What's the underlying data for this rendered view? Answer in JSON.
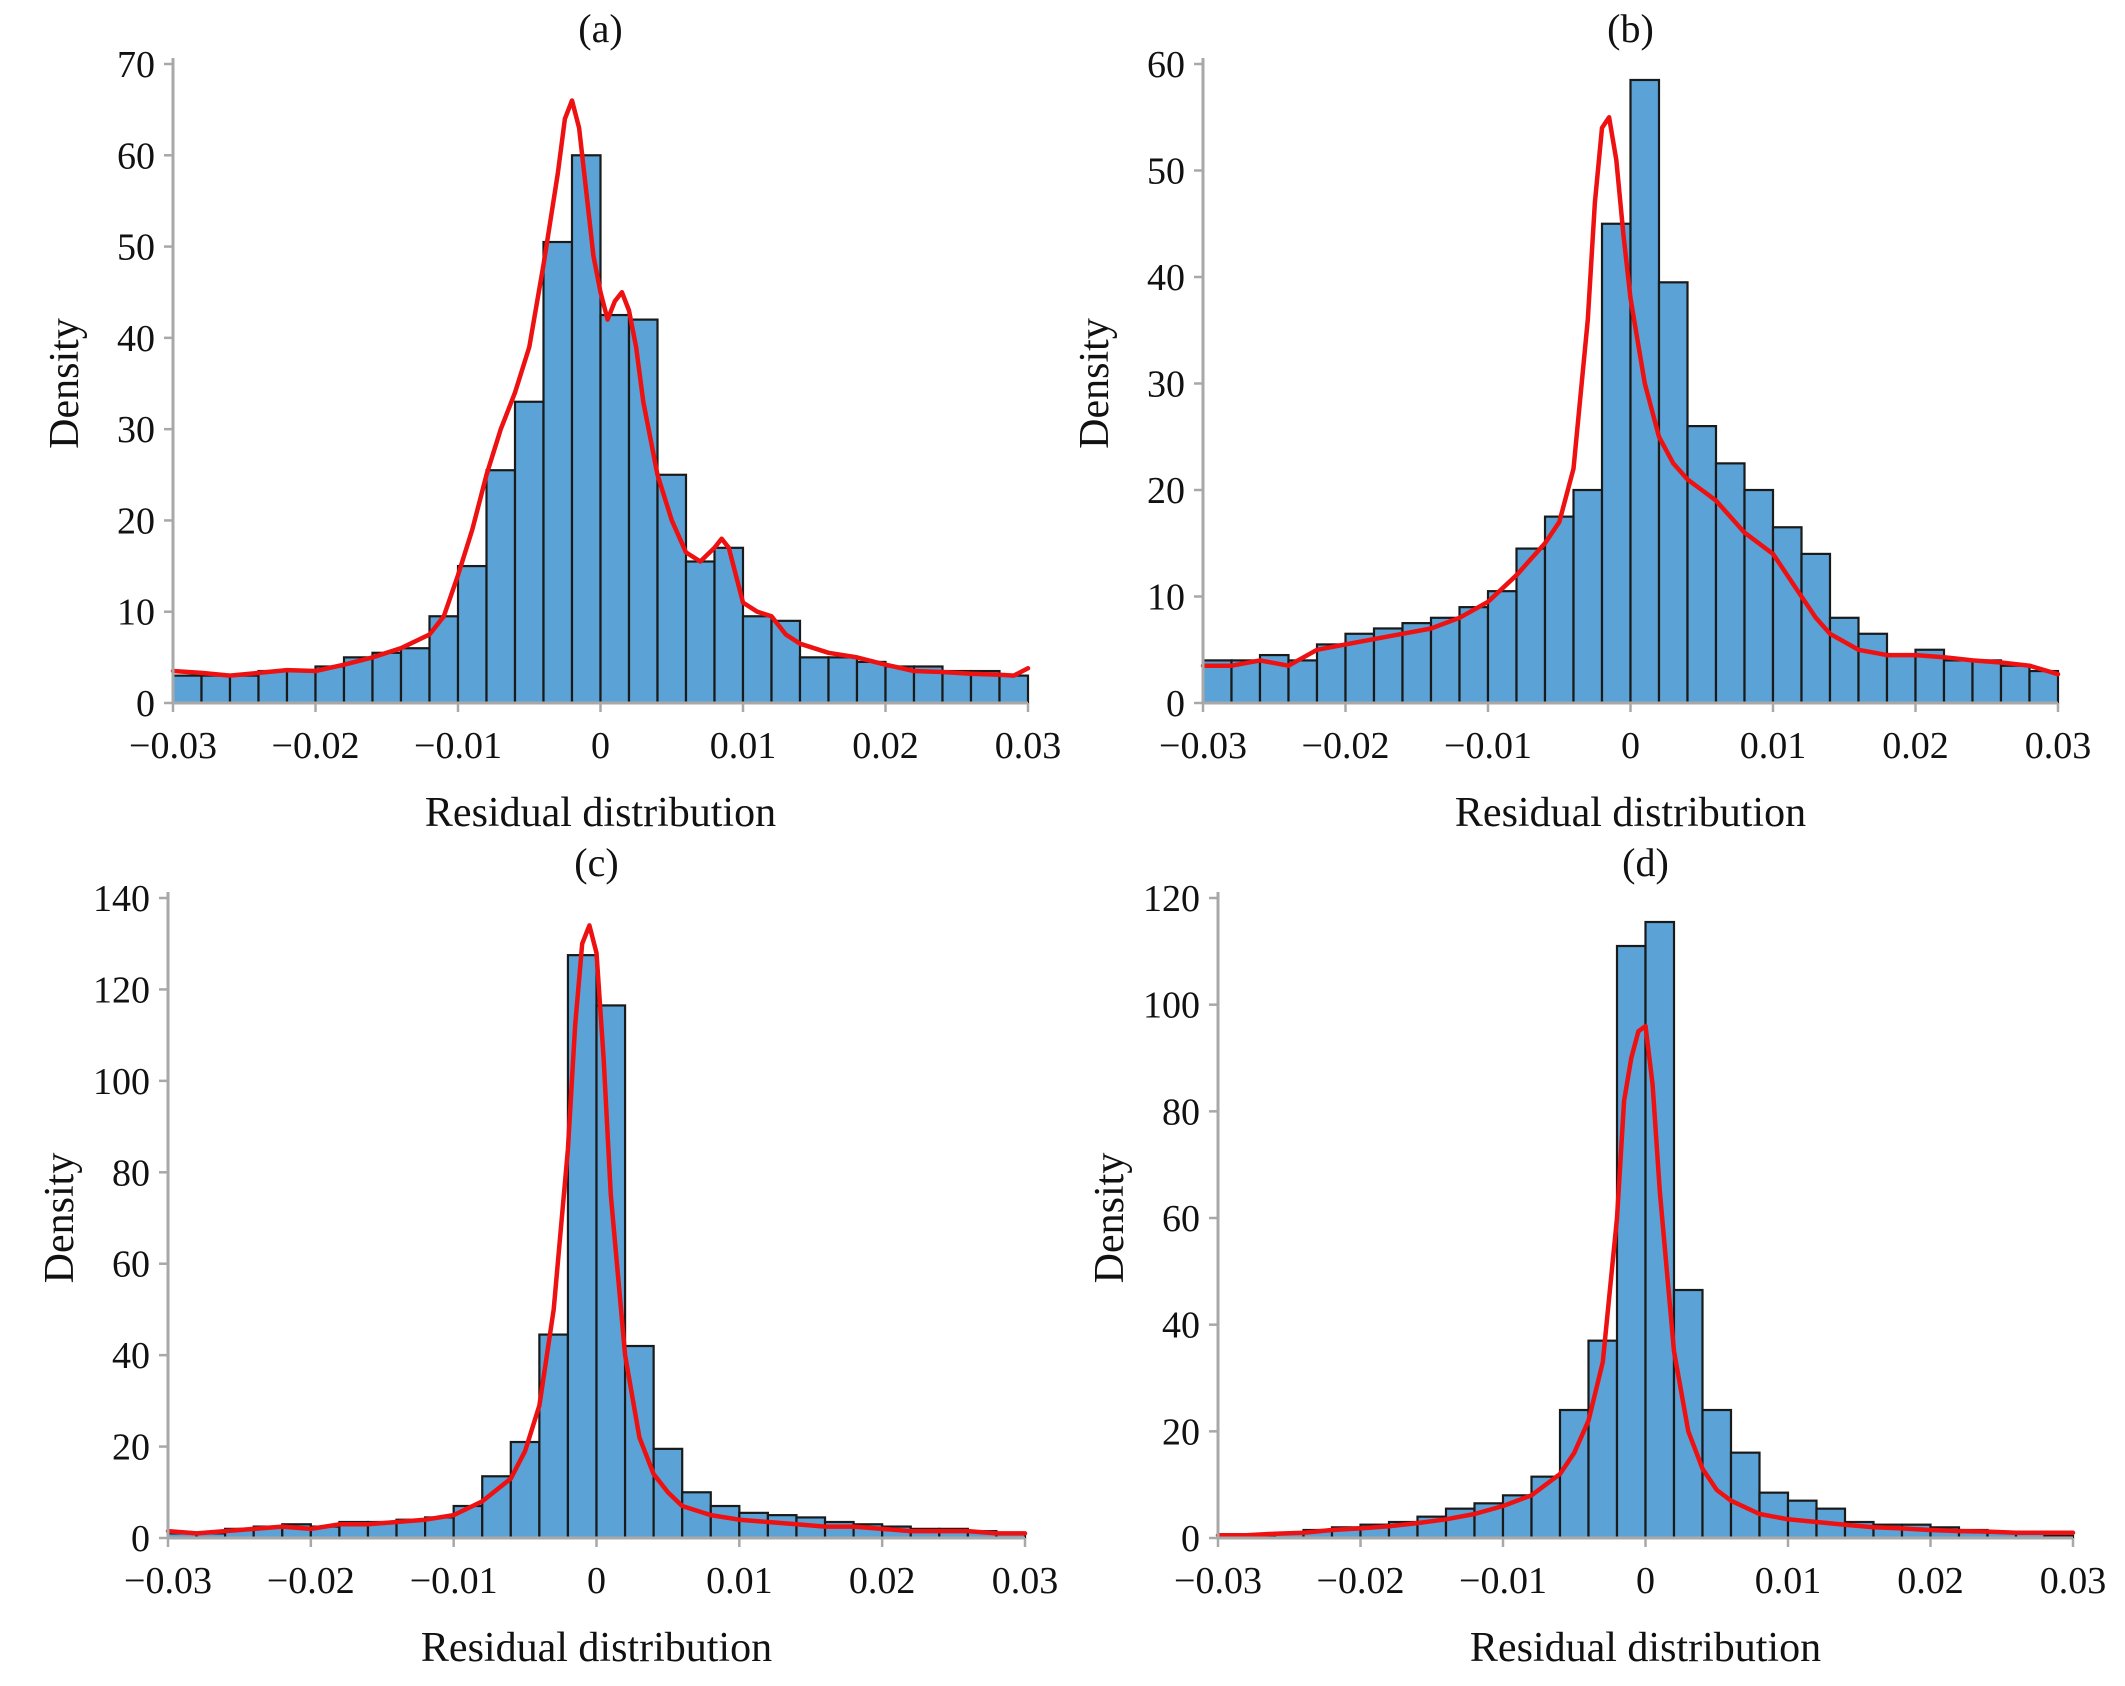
{
  "chart_data": [
    {
      "type": "bar",
      "title": "(a)",
      "xlabel": "Residual distribution",
      "ylabel": "Density",
      "xlim": [
        -0.03,
        0.03
      ],
      "ylim": [
        0,
        70
      ],
      "x_ticks": [
        -0.03,
        -0.02,
        -0.01,
        0,
        0.01,
        0.02,
        0.03
      ],
      "x_tick_labels": [
        "−0.03",
        "−0.02",
        "−0.01",
        "0",
        "0.01",
        "0.02",
        "0.03"
      ],
      "y_ticks": [
        0,
        10,
        20,
        30,
        40,
        50,
        60,
        70
      ],
      "y_tick_labels": [
        "0",
        "10",
        "20",
        "30",
        "40",
        "50",
        "60",
        "70"
      ],
      "bin_width": 0.002,
      "bins_start": -0.03,
      "histogram_values": [
        3,
        3,
        3,
        3.5,
        3.5,
        4,
        5,
        5.5,
        6,
        9.5,
        15,
        25.5,
        33,
        50.5,
        60,
        42.5,
        42,
        25,
        15.5,
        17,
        9.5,
        9,
        5,
        5,
        4.5,
        4,
        4,
        3.5,
        3.5,
        3
      ],
      "series": [
        {
          "name": "density curve",
          "x": [
            -0.03,
            -0.028,
            -0.026,
            -0.024,
            -0.022,
            -0.02,
            -0.018,
            -0.016,
            -0.014,
            -0.012,
            -0.011,
            -0.01,
            -0.009,
            -0.008,
            -0.007,
            -0.006,
            -0.005,
            -0.004,
            -0.003,
            -0.0025,
            -0.002,
            -0.0015,
            -0.001,
            -0.0005,
            0,
            0.0005,
            0.001,
            0.0015,
            0.002,
            0.0025,
            0.003,
            0.004,
            0.005,
            0.006,
            0.007,
            0.008,
            0.0085,
            0.009,
            0.01,
            0.011,
            0.012,
            0.013,
            0.014,
            0.016,
            0.018,
            0.02,
            0.022,
            0.024,
            0.026,
            0.028,
            0.029,
            0.03
          ],
          "y": [
            3.5,
            3.3,
            3.0,
            3.3,
            3.6,
            3.5,
            4.2,
            5.0,
            6.0,
            7.5,
            9.5,
            14,
            19,
            25,
            30,
            34,
            39,
            48,
            58,
            64,
            66,
            63,
            56,
            49,
            45,
            42,
            44,
            45,
            43,
            39,
            33,
            25,
            20,
            16.5,
            15.5,
            17,
            18,
            17,
            11,
            10,
            9.5,
            7.5,
            6.5,
            5.5,
            5,
            4.2,
            3.5,
            3.4,
            3.2,
            3.1,
            3.0,
            3.8
          ]
        }
      ]
    },
    {
      "type": "bar",
      "title": "(b)",
      "xlabel": "Residual distribution",
      "ylabel": "Density",
      "xlim": [
        -0.03,
        0.03
      ],
      "ylim": [
        0,
        60
      ],
      "x_ticks": [
        -0.03,
        -0.02,
        -0.01,
        0,
        0.01,
        0.02,
        0.03
      ],
      "x_tick_labels": [
        "−0.03",
        "−0.02",
        "−0.01",
        "0",
        "0.01",
        "0.02",
        "0.03"
      ],
      "y_ticks": [
        0,
        10,
        20,
        30,
        40,
        50,
        60
      ],
      "y_tick_labels": [
        "0",
        "10",
        "20",
        "30",
        "40",
        "50",
        "60"
      ],
      "bin_width": 0.002,
      "bins_start": -0.03,
      "histogram_values": [
        4,
        4,
        4.5,
        4,
        5.5,
        6.5,
        7,
        7.5,
        8,
        9,
        10.5,
        14.5,
        17.5,
        20,
        45,
        58.5,
        39.5,
        26,
        22.5,
        20,
        16.5,
        14,
        8,
        6.5,
        4.5,
        5,
        4,
        4,
        3.5,
        3
      ],
      "series": [
        {
          "name": "density curve",
          "x": [
            -0.03,
            -0.028,
            -0.026,
            -0.024,
            -0.022,
            -0.02,
            -0.018,
            -0.016,
            -0.014,
            -0.012,
            -0.01,
            -0.008,
            -0.006,
            -0.005,
            -0.004,
            -0.003,
            -0.0025,
            -0.002,
            -0.0015,
            -0.001,
            -0.0005,
            0,
            0.001,
            0.002,
            0.003,
            0.004,
            0.005,
            0.006,
            0.008,
            0.01,
            0.011,
            0.012,
            0.013,
            0.014,
            0.016,
            0.018,
            0.02,
            0.022,
            0.024,
            0.026,
            0.028,
            0.03
          ],
          "y": [
            3.5,
            3.5,
            4.0,
            3.5,
            5.0,
            5.5,
            6.0,
            6.5,
            7.0,
            8.0,
            9.5,
            12,
            15,
            17,
            22,
            36,
            47,
            54,
            55,
            51,
            44,
            38,
            30,
            25,
            22.5,
            21,
            20,
            19,
            16,
            14,
            12,
            10,
            8,
            6.5,
            5,
            4.5,
            4.5,
            4.3,
            4.0,
            3.8,
            3.5,
            2.7
          ]
        }
      ]
    },
    {
      "type": "bar",
      "title": "(c)",
      "xlabel": "Residual distribution",
      "ylabel": "Density",
      "xlim": [
        -0.03,
        0.03
      ],
      "ylim": [
        0,
        140
      ],
      "x_ticks": [
        -0.03,
        -0.02,
        -0.01,
        0,
        0.01,
        0.02,
        0.03
      ],
      "x_tick_labels": [
        "−0.03",
        "−0.02",
        "−0.01",
        "0",
        "0.01",
        "0.02",
        "0.03"
      ],
      "y_ticks": [
        0,
        20,
        40,
        60,
        80,
        100,
        120,
        140
      ],
      "y_tick_labels": [
        "0",
        "20",
        "40",
        "60",
        "80",
        "100",
        "120",
        "140"
      ],
      "bin_width": 0.002,
      "bins_start": -0.03,
      "histogram_values": [
        1,
        1,
        2,
        2.5,
        3,
        2.5,
        3.5,
        3.5,
        4,
        4.5,
        7,
        13.5,
        21,
        44.5,
        127.5,
        116.5,
        42,
        19.5,
        10,
        7,
        5.5,
        5,
        4.5,
        3.5,
        3,
        2.5,
        2,
        2,
        1.5,
        1
      ],
      "series": [
        {
          "name": "density curve",
          "x": [
            -0.03,
            -0.028,
            -0.026,
            -0.024,
            -0.022,
            -0.02,
            -0.018,
            -0.016,
            -0.014,
            -0.012,
            -0.01,
            -0.008,
            -0.006,
            -0.005,
            -0.004,
            -0.003,
            -0.002,
            -0.0015,
            -0.001,
            -0.0005,
            0,
            0.0005,
            0.001,
            0.002,
            0.003,
            0.004,
            0.005,
            0.006,
            0.008,
            0.01,
            0.012,
            0.014,
            0.016,
            0.018,
            0.02,
            0.022,
            0.024,
            0.026,
            0.028,
            0.03
          ],
          "y": [
            1.5,
            1.0,
            1.5,
            2.0,
            2.5,
            2.0,
            3.0,
            3.0,
            3.5,
            4.0,
            5.0,
            8.0,
            13,
            19,
            29,
            50,
            85,
            112,
            130,
            134,
            128,
            105,
            75,
            40,
            22,
            14,
            10,
            7,
            5,
            4,
            3.5,
            3.0,
            2.5,
            2.5,
            2.0,
            1.5,
            1.5,
            1.5,
            1.0,
            1.0
          ]
        }
      ]
    },
    {
      "type": "bar",
      "title": "(d)",
      "xlabel": "Residual distribution",
      "ylabel": "Density",
      "xlim": [
        -0.03,
        0.03
      ],
      "ylim": [
        0,
        120
      ],
      "x_ticks": [
        -0.03,
        -0.02,
        -0.01,
        0,
        0.01,
        0.02,
        0.03
      ],
      "x_tick_labels": [
        "−0.03",
        "−0.02",
        "−0.01",
        "0",
        "0.01",
        "0.02",
        "0.03"
      ],
      "y_ticks": [
        0,
        20,
        40,
        60,
        80,
        100,
        120
      ],
      "y_tick_labels": [
        "0",
        "20",
        "40",
        "60",
        "80",
        "100",
        "120"
      ],
      "bin_width": 0.002,
      "bins_start": -0.03,
      "histogram_values": [
        0.5,
        0.5,
        1,
        1.5,
        2,
        2.5,
        3,
        4,
        5.5,
        6.5,
        8,
        11.5,
        24,
        37,
        111,
        115.5,
        46.5,
        24,
        16,
        8.5,
        7,
        5.5,
        3,
        2.5,
        2.5,
        2,
        1.5,
        1,
        1,
        0.5
      ],
      "series": [
        {
          "name": "density curve",
          "x": [
            -0.03,
            -0.028,
            -0.026,
            -0.024,
            -0.022,
            -0.02,
            -0.018,
            -0.016,
            -0.014,
            -0.012,
            -0.01,
            -0.008,
            -0.006,
            -0.005,
            -0.004,
            -0.003,
            -0.002,
            -0.0015,
            -0.001,
            -0.0005,
            0,
            0.0005,
            0.001,
            0.002,
            0.003,
            0.004,
            0.005,
            0.006,
            0.008,
            0.01,
            0.012,
            0.014,
            0.016,
            0.018,
            0.02,
            0.022,
            0.024,
            0.026,
            0.028,
            0.03
          ],
          "y": [
            0.5,
            0.5,
            0.8,
            1.0,
            1.5,
            1.8,
            2.2,
            2.8,
            3.5,
            4.5,
            6,
            8,
            12,
            16,
            22,
            33,
            60,
            82,
            90,
            95,
            96,
            85,
            65,
            35,
            20,
            13,
            9,
            7,
            4.5,
            3.5,
            3,
            2.5,
            2,
            1.8,
            1.5,
            1.3,
            1.2,
            1,
            1,
            1
          ]
        }
      ]
    }
  ]
}
